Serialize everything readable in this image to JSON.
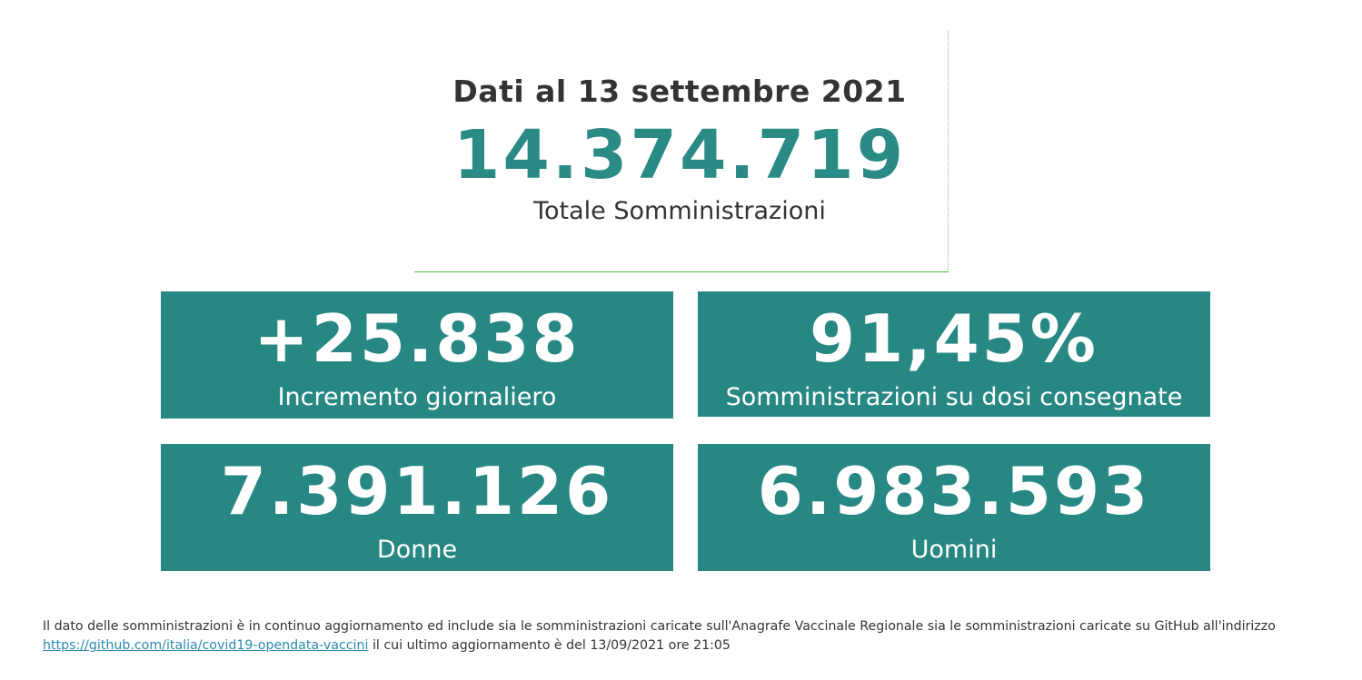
{
  "header": {
    "date_title": "Dati al 13 settembre 2021",
    "total_value": "14.374.719",
    "total_label": "Totale Somministrazioni"
  },
  "cards": {
    "increment": {
      "value": "+25.838",
      "label": "Incremento giornaliero"
    },
    "ratio": {
      "value": "91,45%",
      "label": "Somministrazioni su dosi consegnate"
    },
    "women": {
      "value": "7.391.126",
      "label": "Donne"
    },
    "men": {
      "value": "6.983.593",
      "label": "Uomini"
    }
  },
  "footnote": {
    "text_before": "Il dato delle somministrazioni è in continuo aggiornamento ed include sia le somministrazioni caricate sull'Anagrafe Vaccinale Regionale sia le somministrazioni caricate su GitHub all'indirizzo",
    "link_text": "https://github.com/italia/covid19-opendata-vaccini",
    "text_after": "il cui ultimo aggiornamento è del 13/09/2021 ore 21:05"
  },
  "colors": {
    "accent": "#278782",
    "title_text": "#333333",
    "divider": "#4cc13a",
    "link": "#2a8ab0"
  }
}
